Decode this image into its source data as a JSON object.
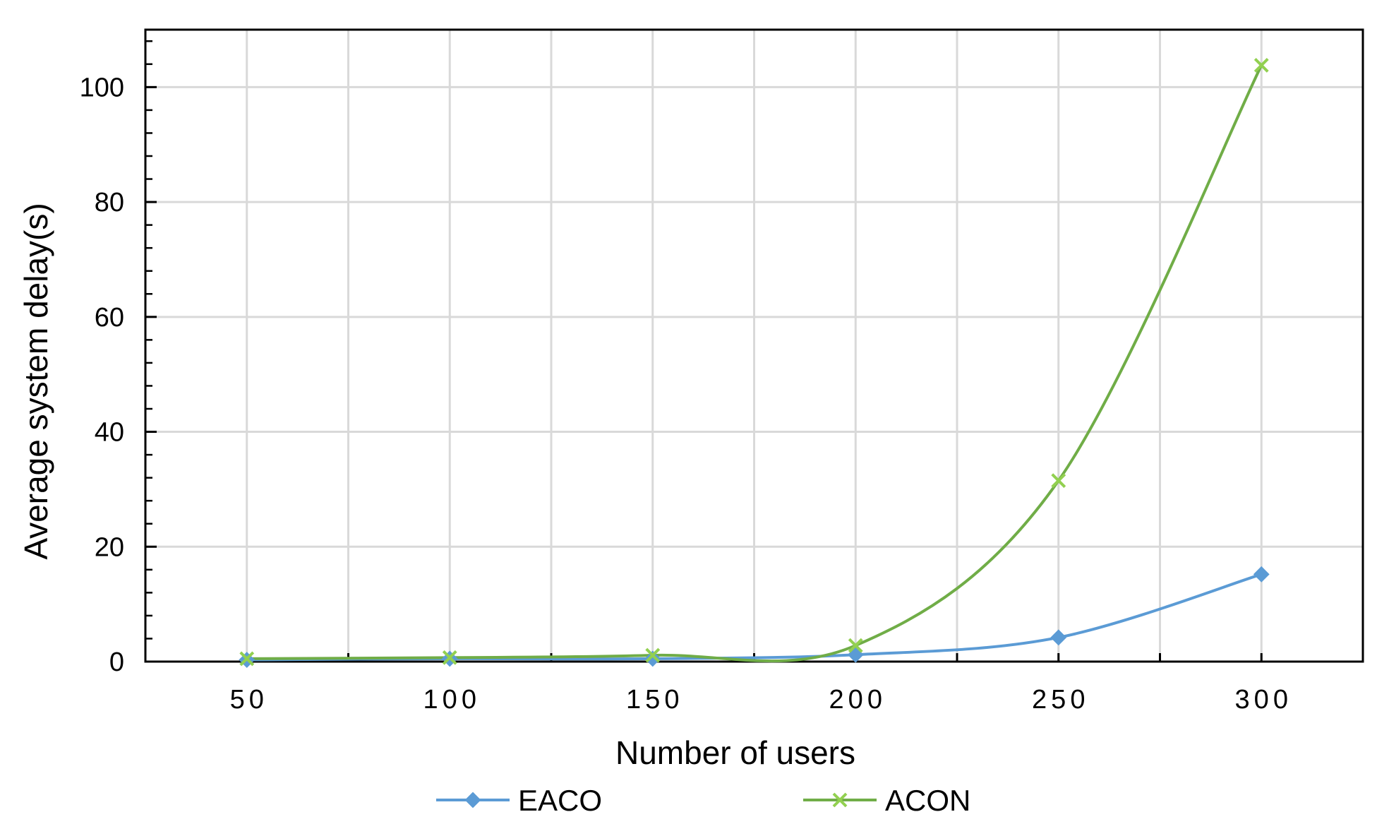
{
  "chart_data": {
    "type": "line",
    "title": "",
    "xlabel": "Number of users",
    "ylabel": "Average system delay(s)",
    "categories": [
      "50",
      "100",
      "150",
      "200",
      "250",
      "300"
    ],
    "x": [
      50,
      100,
      150,
      200,
      250,
      300
    ],
    "xlim": [
      25,
      325
    ],
    "ylim": [
      0,
      110
    ],
    "yticks": [
      0,
      20,
      40,
      60,
      80,
      100
    ],
    "yticks_labels": [
      "0",
      "20",
      "40",
      "60",
      "80",
      "100"
    ],
    "y_minor_step": 4,
    "grid": true,
    "legend": "bottom",
    "series": [
      {
        "name": "EACO",
        "values": [
          0.3,
          0.5,
          0.5,
          1.2,
          4.2,
          15.2
        ],
        "color": "#5b9bd5",
        "marker": "diamond"
      },
      {
        "name": "ACON",
        "values": [
          0.5,
          0.7,
          1.1,
          2.8,
          31.5,
          103.8
        ],
        "color": "#70ad47",
        "marker": "x"
      }
    ]
  }
}
